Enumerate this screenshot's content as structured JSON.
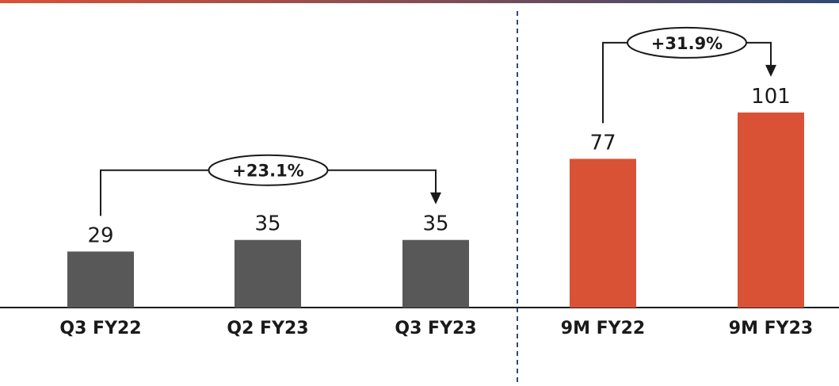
{
  "chart_data": {
    "type": "bar",
    "categories": [
      "Q3 FY22",
      "Q2 FY23",
      "Q3 FY23",
      "9M FY22",
      "9M FY23"
    ],
    "values": [
      29,
      35,
      35,
      77,
      101
    ],
    "ylim": [
      0,
      110
    ],
    "grid": false,
    "legend": "none",
    "colors": {
      "quarter": "#585858",
      "nine_month": "#D95235",
      "top_rule_left": "#D95235",
      "top_rule_right": "#2E4A73",
      "divider": "#2E4A73",
      "text": "#1a1a1a"
    },
    "bar_colors": [
      "quarter",
      "quarter",
      "quarter",
      "nine_month",
      "nine_month"
    ],
    "annotations": [
      {
        "text": "+23.1%",
        "from": "Q3 FY22",
        "to": "Q3 FY23"
      },
      {
        "text": "+31.9%",
        "from": "9M FY22",
        "to": "9M FY23"
      }
    ]
  }
}
